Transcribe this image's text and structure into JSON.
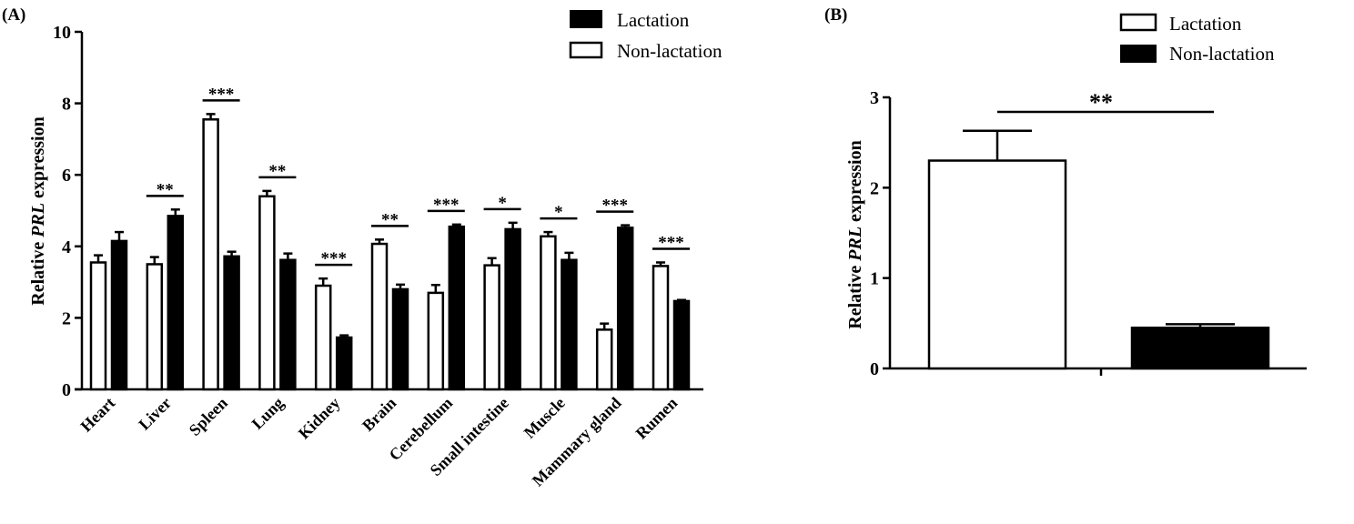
{
  "chart_data": [
    {
      "type": "bar",
      "panel_label": "(A)",
      "ylabel_prefix": "Relative ",
      "ylabel_italic": "PRL",
      "ylabel_suffix": " expression",
      "ylim": [
        0,
        10
      ],
      "yticks": [
        "0",
        "2",
        "4",
        "6",
        "8",
        "10"
      ],
      "grid": false,
      "legend_placement": "top-right",
      "legend": [
        {
          "label": "Lactation",
          "fill": "#000000"
        },
        {
          "label": "Non-lactation",
          "fill": "#ffffff"
        }
      ],
      "categories": [
        "Heart",
        "Liver",
        "Spleen",
        "Lung",
        "Kidney",
        "Brain",
        "Cerebellum",
        "Small intestine",
        "Muscle",
        "Mammary gland",
        "Rumen"
      ],
      "series": [
        {
          "fill": "#ffffff",
          "values": [
            3.55,
            3.5,
            7.55,
            5.4,
            2.9,
            4.07,
            2.7,
            3.47,
            4.28,
            1.67,
            3.45
          ],
          "errors": [
            0.2,
            0.2,
            0.15,
            0.15,
            0.2,
            0.12,
            0.22,
            0.2,
            0.12,
            0.17,
            0.1
          ]
        },
        {
          "fill": "#000000",
          "values": [
            4.15,
            4.85,
            3.72,
            3.62,
            1.45,
            2.8,
            4.55,
            4.48,
            3.62,
            4.52,
            2.47
          ],
          "errors": [
            0.25,
            0.18,
            0.13,
            0.18,
            0.06,
            0.13,
            0.06,
            0.18,
            0.2,
            0.07,
            0.03
          ]
        }
      ],
      "significance": [
        "",
        "**",
        "***",
        "**",
        "***",
        "**",
        "***",
        "*",
        "*",
        "***",
        "***"
      ]
    },
    {
      "type": "bar",
      "panel_label": "(B)",
      "ylabel_prefix": "Relative ",
      "ylabel_italic": "PRL",
      "ylabel_suffix": " expression",
      "ylim": [
        0,
        3
      ],
      "yticks": [
        "0",
        "1",
        "2",
        "3"
      ],
      "grid": false,
      "legend_placement": "top-right",
      "legend": [
        {
          "label": "Lactation",
          "fill": "#ffffff"
        },
        {
          "label": "Non-lactation",
          "fill": "#000000"
        }
      ],
      "bars": [
        {
          "fill": "#ffffff",
          "value": 2.3,
          "error": 0.33
        },
        {
          "fill": "#000000",
          "value": 0.45,
          "error": 0.04
        }
      ],
      "significance": "**"
    }
  ]
}
